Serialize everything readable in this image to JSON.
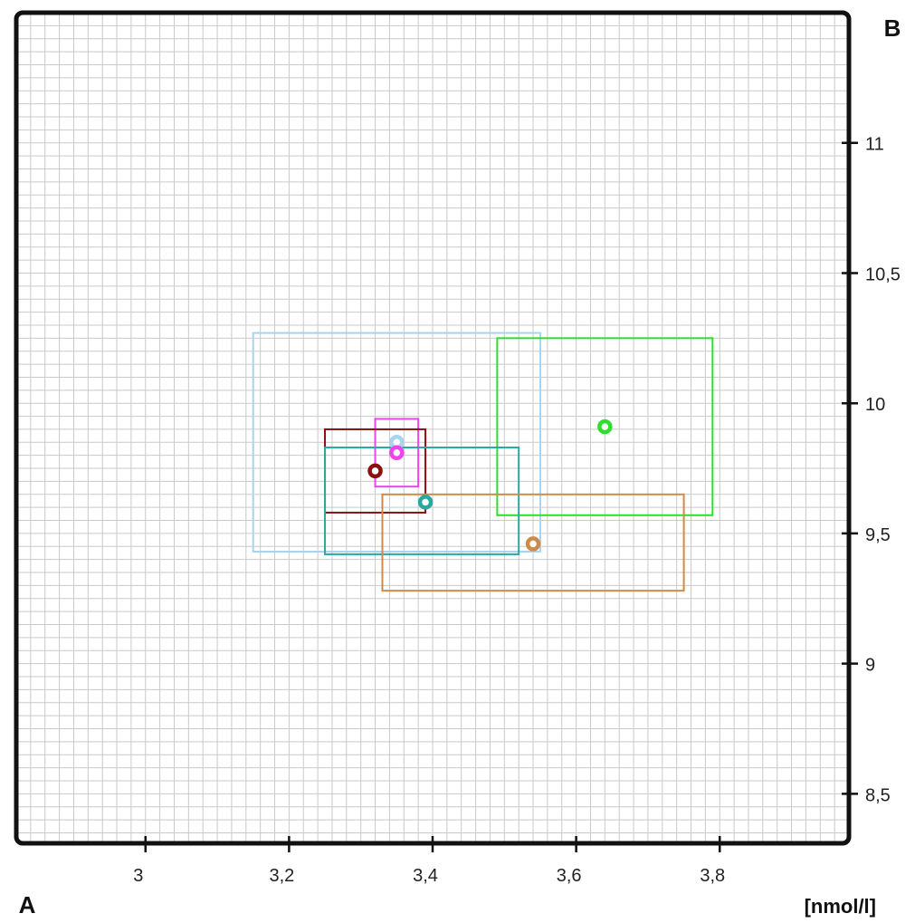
{
  "chart_data": {
    "type": "scatter",
    "title": "",
    "corner_labels": {
      "top_right": "B",
      "bottom_left": "A"
    },
    "xlabel": "[nmol/l]",
    "ylabel": "",
    "xlim": [
      2.82,
      3.98
    ],
    "ylim": [
      8.31,
      11.5
    ],
    "x_ticks": [
      3,
      3.2,
      3.4,
      3.6,
      3.8
    ],
    "x_tick_labels": [
      "3",
      "3,2",
      "3,4",
      "3,6",
      "3,8"
    ],
    "y_ticks": [
      8.5,
      9,
      9.5,
      10,
      10.5,
      11
    ],
    "y_tick_labels": [
      "8,5",
      "9",
      "9,5",
      "10",
      "10,5",
      "11"
    ],
    "y_axis_side": "right",
    "grid": true,
    "series": [
      {
        "color": "#a8d4f0",
        "x": 3.35,
        "y": 9.85,
        "box": {
          "x0": 3.15,
          "x1": 3.55,
          "y0": 9.43,
          "y1": 10.27
        }
      },
      {
        "color": "#2ee02e",
        "x": 3.64,
        "y": 9.91,
        "box": {
          "x0": 3.49,
          "x1": 3.79,
          "y0": 9.57,
          "y1": 10.25
        }
      },
      {
        "color": "#ee44ee",
        "x": 3.35,
        "y": 9.81,
        "box": {
          "x0": 3.32,
          "x1": 3.38,
          "y0": 9.68,
          "y1": 9.94
        }
      },
      {
        "color": "#8b1010",
        "x": 3.32,
        "y": 9.74,
        "box": {
          "x0": 3.25,
          "x1": 3.39,
          "y0": 9.58,
          "y1": 9.9
        }
      },
      {
        "color": "#2aa8a0",
        "x": 3.39,
        "y": 9.62,
        "box": {
          "x0": 3.25,
          "x1": 3.52,
          "y0": 9.42,
          "y1": 9.83
        }
      },
      {
        "color": "#d08a48",
        "x": 3.54,
        "y": 9.46,
        "box": {
          "x0": 3.33,
          "x1": 3.75,
          "y0": 9.28,
          "y1": 9.65
        }
      }
    ]
  }
}
